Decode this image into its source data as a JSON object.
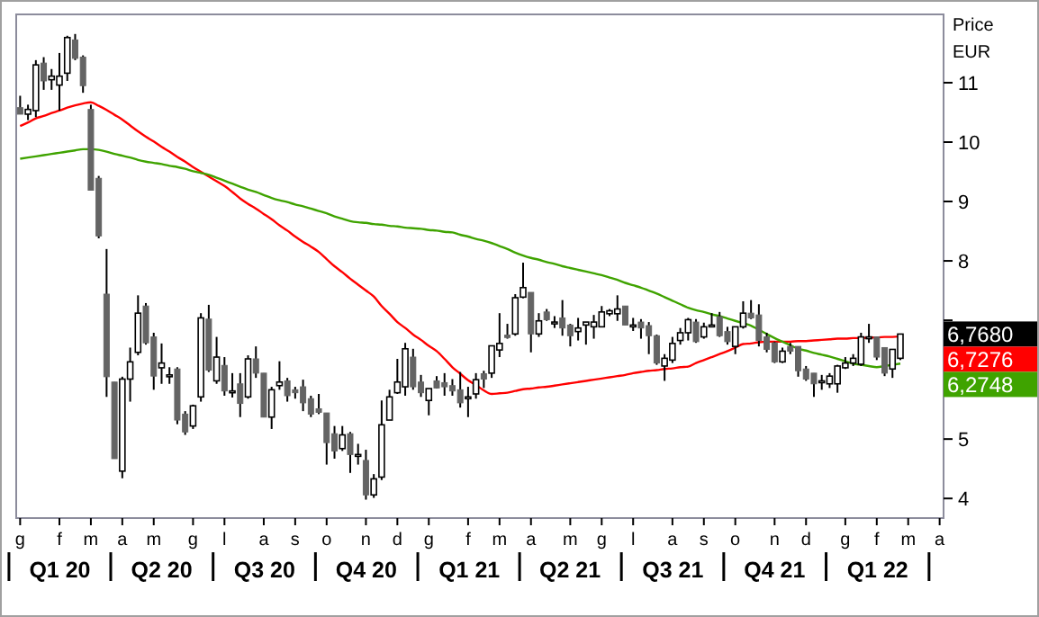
{
  "chart_data": {
    "type": "candlestick",
    "ylabel": "Price\nEUR",
    "categories": [
      "g",
      null,
      null,
      null,
      null,
      "f",
      null,
      null,
      null,
      "m",
      null,
      null,
      null,
      "a",
      null,
      null,
      null,
      "m",
      null,
      null,
      null,
      null,
      "g",
      null,
      null,
      null,
      "l",
      null,
      null,
      null,
      null,
      "a",
      null,
      null,
      null,
      "s",
      null,
      null,
      null,
      "o",
      null,
      null,
      null,
      null,
      "n",
      null,
      null,
      null,
      "d",
      null,
      null,
      null,
      "g",
      null,
      null,
      null,
      null,
      "f",
      null,
      null,
      null,
      "m",
      null,
      null,
      null,
      "a",
      null,
      null,
      null,
      null,
      "m",
      null,
      null,
      null,
      "g",
      null,
      null,
      null,
      "l",
      null,
      null,
      null,
      null,
      "a",
      null,
      null,
      null,
      "s",
      null,
      null,
      null,
      "o",
      null,
      null,
      null,
      null,
      "n",
      null,
      null,
      null,
      "d",
      null,
      null,
      null,
      null,
      "g",
      null,
      null,
      null,
      "f",
      null,
      null,
      null,
      "m",
      null,
      null,
      null,
      "a"
    ],
    "x2lim": [
      "2020-01-07",
      "2022-04-15"
    ],
    "x2ticks": [
      {
        "value": "2020-02-15",
        "label": "Q1 20"
      },
      {
        "value": "2020-05-16",
        "label": "Q2 20"
      },
      {
        "value": "2020-08-16",
        "label": "Q3 20"
      },
      {
        "value": "2020-11-15",
        "label": "Q4 20"
      },
      {
        "value": "2021-02-15",
        "label": "Q1 21"
      },
      {
        "value": "2021-05-16",
        "label": "Q2 21"
      },
      {
        "value": "2021-08-16",
        "label": "Q3 21"
      },
      {
        "value": "2021-11-15",
        "label": "Q4 21"
      },
      {
        "value": "2022-02-15",
        "label": "Q1 22"
      }
    ],
    "ylim": [
      3.67,
      12.15
    ],
    "yticks": [
      4,
      5,
      {
        "value": 7,
        "label": null
      },
      8,
      9,
      10,
      11
    ],
    "ohlc": [
      [
        10.58,
        10.78,
        10.47,
        10.47
      ],
      [
        10.47,
        10.63,
        10.37,
        10.55
      ],
      [
        10.53,
        11.38,
        10.42,
        11.3
      ],
      [
        11.33,
        11.43,
        10.88,
        11.03
      ],
      [
        11.05,
        11.23,
        10.88,
        11.11
      ],
      [
        10.96,
        11.5,
        10.53,
        11.11
      ],
      [
        11.16,
        11.79,
        11.03,
        11.76
      ],
      [
        11.72,
        11.82,
        11.38,
        11.41
      ],
      [
        11.43,
        11.46,
        10.83,
        10.95
      ],
      [
        10.55,
        10.63,
        9.19,
        9.19
      ],
      [
        9.39,
        9.43,
        8.38,
        8.42
      ],
      [
        7.44,
        8.2,
        5.71,
        6.05
      ],
      [
        5.96,
        5.96,
        4.67,
        4.67
      ],
      [
        4.46,
        6.05,
        4.34,
        6.01
      ],
      [
        6.01,
        6.54,
        5.63,
        6.3
      ],
      [
        6.46,
        7.42,
        6.41,
        7.12
      ],
      [
        7.24,
        7.29,
        6.59,
        6.62
      ],
      [
        6.72,
        6.79,
        5.83,
        6.06
      ],
      [
        6.2,
        6.61,
        5.93,
        6.28
      ],
      [
        6.08,
        6.21,
        5.93,
        6.08
      ],
      [
        6.18,
        6.21,
        5.25,
        5.32
      ],
      [
        5.42,
        5.47,
        5.07,
        5.12
      ],
      [
        5.22,
        5.58,
        5.17,
        5.56
      ],
      [
        5.71,
        7.12,
        5.63,
        7.04
      ],
      [
        7.02,
        7.26,
        6.13,
        6.16
      ],
      [
        5.98,
        6.72,
        5.93,
        6.38
      ],
      [
        6.24,
        6.38,
        5.73,
        5.81
      ],
      [
        5.81,
        6.11,
        5.7,
        5.81
      ],
      [
        5.93,
        6.11,
        5.37,
        5.6
      ],
      [
        5.71,
        6.41,
        5.68,
        6.35
      ],
      [
        6.35,
        6.56,
        6.03,
        6.11
      ],
      [
        6.11,
        6.11,
        5.37,
        5.37
      ],
      [
        5.37,
        5.88,
        5.17,
        5.83
      ],
      [
        5.9,
        6.31,
        5.83,
        5.96
      ],
      [
        5.98,
        6.03,
        5.63,
        5.73
      ],
      [
        5.83,
        5.88,
        5.68,
        5.78
      ],
      [
        5.88,
        6.0,
        5.47,
        5.61
      ],
      [
        5.68,
        5.73,
        5.37,
        5.42
      ],
      [
        5.51,
        5.76,
        5.42,
        5.45
      ],
      [
        5.44,
        5.44,
        4.57,
        4.94
      ],
      [
        5.09,
        5.22,
        4.67,
        4.8
      ],
      [
        4.84,
        5.22,
        4.8,
        5.07
      ],
      [
        5.09,
        5.12,
        4.43,
        4.74
      ],
      [
        4.74,
        4.92,
        4.57,
        4.74
      ],
      [
        4.64,
        4.82,
        3.98,
        4.06
      ],
      [
        4.06,
        4.41,
        4.01,
        4.33
      ],
      [
        4.36,
        5.65,
        4.31,
        5.24
      ],
      [
        5.32,
        5.83,
        5.32,
        5.71
      ],
      [
        5.78,
        6.35,
        5.76,
        5.96
      ],
      [
        5.88,
        6.62,
        5.73,
        6.52
      ],
      [
        6.38,
        6.52,
        5.83,
        5.88
      ],
      [
        5.96,
        6.08,
        5.71,
        5.78
      ],
      [
        5.65,
        5.85,
        5.4,
        5.85
      ],
      [
        5.98,
        6.06,
        5.85,
        5.86
      ],
      [
        5.95,
        6.11,
        5.73,
        5.88
      ],
      [
        5.9,
        6.01,
        5.73,
        5.81
      ],
      [
        5.83,
        6.13,
        5.53,
        5.61
      ],
      [
        5.71,
        5.88,
        5.37,
        5.71
      ],
      [
        5.76,
        6.11,
        5.68,
        6.0
      ],
      [
        6.1,
        6.15,
        5.86,
        6.01
      ],
      [
        6.11,
        6.57,
        6.03,
        6.57
      ],
      [
        6.5,
        7.12,
        6.38,
        6.61
      ],
      [
        6.75,
        6.94,
        6.69,
        6.71
      ],
      [
        6.77,
        7.44,
        6.74,
        7.38
      ],
      [
        7.39,
        7.97,
        7.37,
        7.55
      ],
      [
        7.47,
        7.47,
        6.46,
        6.77
      ],
      [
        6.77,
        7.12,
        6.72,
        6.99
      ],
      [
        7.14,
        7.19,
        6.99,
        7.01
      ],
      [
        6.97,
        7.07,
        6.87,
        6.97
      ],
      [
        7.04,
        7.34,
        6.74,
        6.87
      ],
      [
        6.92,
        6.94,
        6.56,
        6.74
      ],
      [
        6.81,
        7.04,
        6.66,
        6.87
      ],
      [
        6.92,
        6.97,
        6.59,
        6.97
      ],
      [
        6.89,
        7.09,
        6.69,
        6.97
      ],
      [
        6.89,
        7.24,
        6.89,
        7.14
      ],
      [
        7.11,
        7.19,
        7.07,
        7.16
      ],
      [
        7.11,
        7.42,
        6.99,
        7.19
      ],
      [
        7.24,
        7.24,
        6.92,
        6.92
      ],
      [
        6.92,
        7.04,
        6.82,
        6.92
      ],
      [
        6.97,
        7.02,
        6.69,
        6.87
      ],
      [
        6.91,
        6.97,
        6.43,
        6.74
      ],
      [
        6.74,
        6.76,
        6.25,
        6.28
      ],
      [
        6.23,
        6.43,
        5.98,
        6.36
      ],
      [
        6.33,
        6.72,
        6.28,
        6.61
      ],
      [
        6.66,
        6.87,
        6.59,
        6.79
      ],
      [
        6.79,
        7.04,
        6.66,
        7.01
      ],
      [
        6.97,
        7.02,
        6.62,
        6.64
      ],
      [
        6.72,
        6.96,
        6.69,
        6.89
      ],
      [
        6.92,
        7.12,
        6.89,
        6.92
      ],
      [
        7.06,
        7.14,
        6.72,
        6.74
      ],
      [
        6.81,
        6.89,
        6.59,
        6.64
      ],
      [
        6.56,
        6.89,
        6.43,
        6.89
      ],
      [
        6.89,
        7.32,
        6.86,
        7.12
      ],
      [
        7.12,
        7.34,
        7.02,
        7.04
      ],
      [
        7.09,
        7.27,
        6.56,
        6.66
      ],
      [
        6.72,
        6.79,
        6.46,
        6.51
      ],
      [
        6.62,
        6.64,
        6.28,
        6.3
      ],
      [
        6.3,
        6.54,
        6.28,
        6.48
      ],
      [
        6.56,
        6.62,
        6.43,
        6.48
      ],
      [
        6.56,
        6.56,
        6.05,
        6.15
      ],
      [
        6.18,
        6.23,
        5.98,
        6.01
      ],
      [
        6.11,
        6.11,
        5.71,
        5.93
      ],
      [
        5.98,
        6.08,
        5.83,
        5.98
      ],
      [
        5.93,
        6.11,
        5.86,
        6.06
      ],
      [
        5.93,
        6.25,
        5.78,
        6.23
      ],
      [
        6.2,
        6.38,
        6.18,
        6.28
      ],
      [
        6.28,
        6.43,
        6.23,
        6.36
      ],
      [
        6.26,
        6.79,
        6.23,
        6.72
      ],
      [
        6.72,
        6.94,
        6.62,
        6.72
      ],
      [
        6.72,
        6.72,
        6.33,
        6.38
      ],
      [
        6.54,
        6.54,
        6.06,
        6.11
      ],
      [
        6.18,
        6.51,
        6.03,
        6.51
      ],
      [
        6.36,
        6.77,
        6.33,
        6.768
      ],
      null,
      null,
      null,
      null,
      null
    ],
    "series": [
      {
        "type": "line",
        "color": "#ff0000",
        "values": [
          10.27,
          10.33,
          10.4,
          10.44,
          10.49,
          10.53,
          10.58,
          10.62,
          10.65,
          10.67,
          10.61,
          10.54,
          10.46,
          10.38,
          10.28,
          10.18,
          10.09,
          10.01,
          9.92,
          9.84,
          9.75,
          9.67,
          9.58,
          9.5,
          9.42,
          9.34,
          9.26,
          9.16,
          9.05,
          8.96,
          8.88,
          8.79,
          8.7,
          8.6,
          8.51,
          8.41,
          8.32,
          8.24,
          8.15,
          8.03,
          7.91,
          7.81,
          7.7,
          7.6,
          7.5,
          7.4,
          7.24,
          7.11,
          6.97,
          6.87,
          6.76,
          6.67,
          6.57,
          6.48,
          6.35,
          6.21,
          6.1,
          5.99,
          5.91,
          5.82,
          5.76,
          5.77,
          5.78,
          5.81,
          5.84,
          5.85,
          5.87,
          5.88,
          5.9,
          5.92,
          5.94,
          5.96,
          5.98,
          6.0,
          6.02,
          6.04,
          6.06,
          6.08,
          6.11,
          6.13,
          6.15,
          6.16,
          6.18,
          6.19,
          6.21,
          6.22,
          6.28,
          6.33,
          6.38,
          6.43,
          6.48,
          6.54,
          6.6,
          6.61,
          6.63,
          6.64,
          6.64,
          6.64,
          6.64,
          6.65,
          6.65,
          6.66,
          6.67,
          6.68,
          6.69,
          6.69,
          6.7,
          6.7,
          6.71,
          6.71,
          6.72,
          6.72,
          6.73,
          null,
          null,
          null,
          null,
          null
        ]
      },
      {
        "type": "line",
        "color": "#3fa300",
        "values": [
          9.72,
          9.74,
          9.76,
          9.78,
          9.8,
          9.82,
          9.84,
          9.86,
          9.88,
          9.88,
          9.87,
          9.84,
          9.8,
          9.77,
          9.74,
          9.7,
          9.67,
          9.65,
          9.63,
          9.6,
          9.58,
          9.55,
          9.51,
          9.48,
          9.45,
          9.4,
          9.35,
          9.3,
          9.25,
          9.2,
          9.16,
          9.11,
          9.06,
          9.02,
          8.99,
          8.95,
          8.92,
          8.88,
          8.84,
          8.8,
          8.75,
          8.71,
          8.67,
          8.65,
          8.64,
          8.62,
          8.61,
          8.59,
          8.58,
          8.56,
          8.55,
          8.54,
          8.52,
          8.51,
          8.49,
          8.48,
          8.44,
          8.41,
          8.37,
          8.34,
          8.3,
          8.25,
          8.2,
          8.14,
          8.09,
          8.05,
          8.02,
          7.98,
          7.95,
          7.91,
          7.88,
          7.85,
          7.82,
          7.79,
          7.76,
          7.72,
          7.68,
          7.63,
          7.59,
          7.55,
          7.5,
          7.45,
          7.39,
          7.33,
          7.27,
          7.21,
          7.17,
          7.14,
          7.1,
          7.07,
          7.03,
          6.99,
          6.95,
          6.91,
          6.84,
          6.77,
          6.7,
          6.64,
          6.58,
          6.52,
          6.49,
          6.45,
          6.42,
          6.39,
          6.35,
          6.31,
          6.27,
          6.25,
          6.23,
          6.21,
          6.23,
          6.25,
          6.27,
          null,
          null,
          null,
          null,
          null
        ]
      }
    ],
    "annotations": [
      "6,7680",
      "6,7276",
      "6,2748"
    ]
  }
}
